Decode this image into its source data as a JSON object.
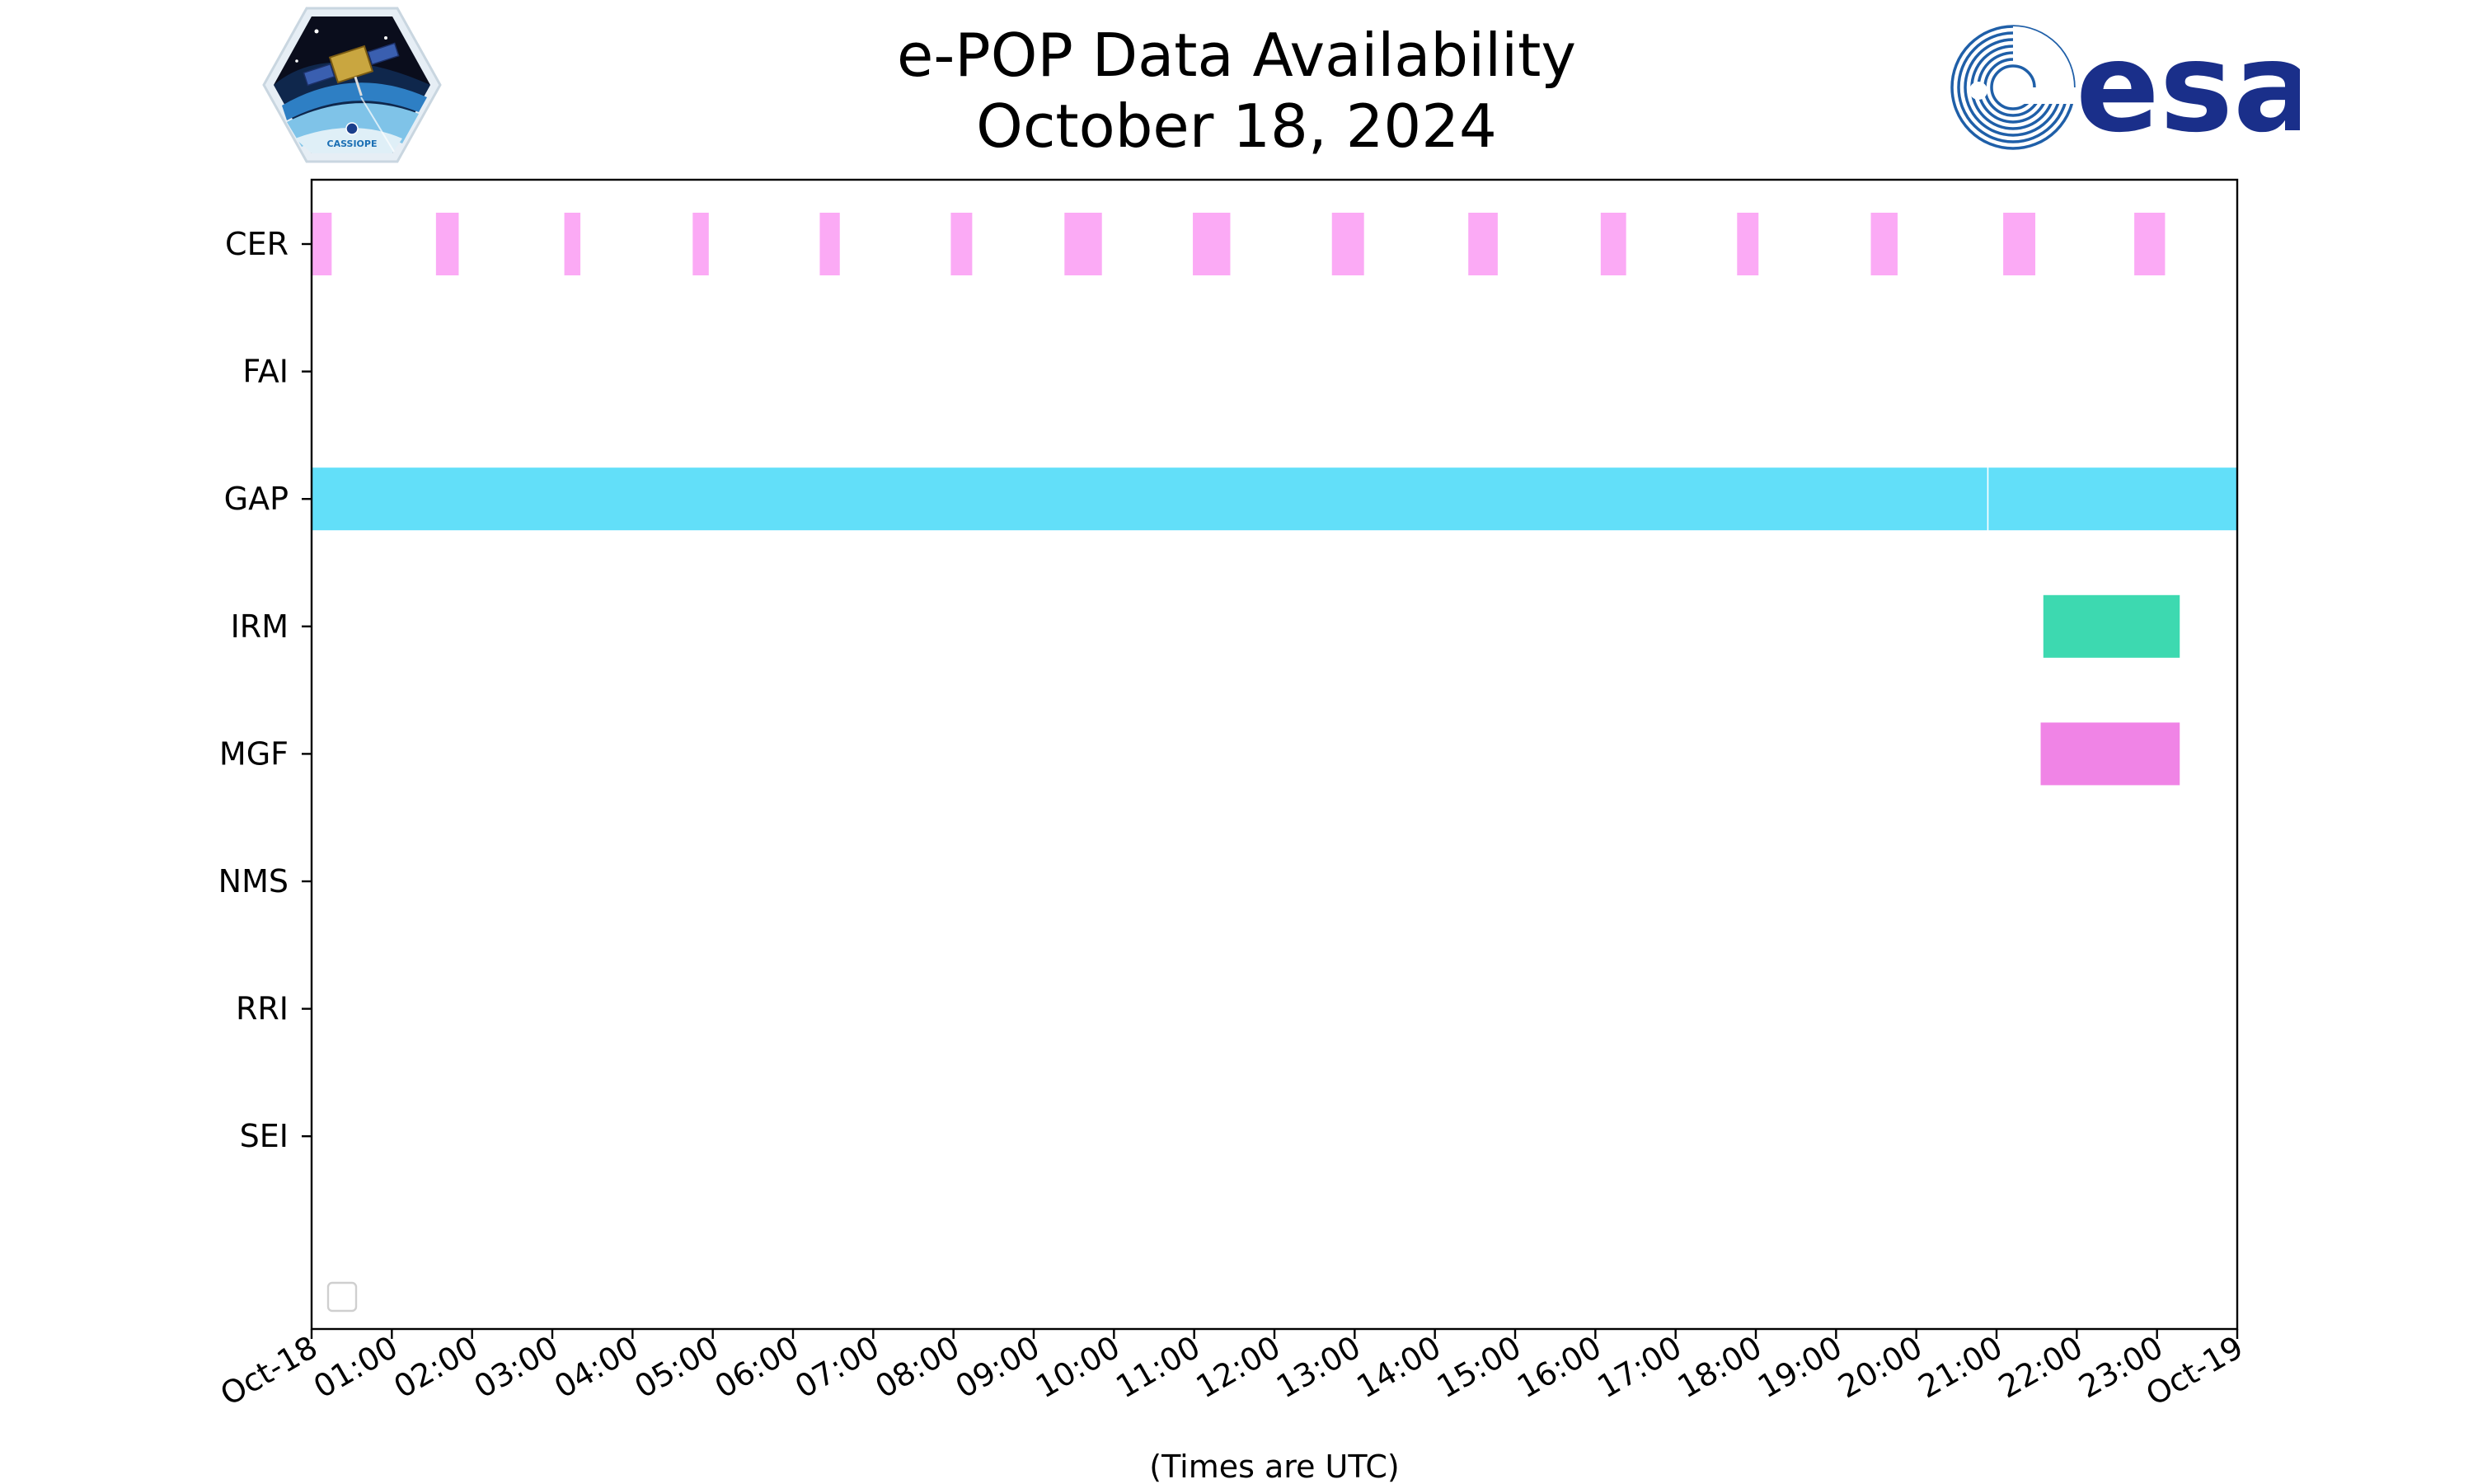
{
  "title": "e-POP Data Availability",
  "subtitle": "October 18, 2024",
  "logos": {
    "left_text": "CASSIOPE",
    "right_text": "esa"
  },
  "chart_data": {
    "type": "timeline",
    "title": "e-POP Data Availability",
    "subtitle": "October 18, 2024",
    "xlabel": "(Times are UTC)",
    "ylabel": "",
    "x_range": [
      "2024-10-18 00:00",
      "2024-10-19 00:00"
    ],
    "x_tick_labels": [
      "Oct-18",
      "01:00",
      "02:00",
      "03:00",
      "04:00",
      "05:00",
      "06:00",
      "07:00",
      "08:00",
      "09:00",
      "10:00",
      "11:00",
      "12:00",
      "13:00",
      "14:00",
      "15:00",
      "16:00",
      "17:00",
      "18:00",
      "19:00",
      "20:00",
      "21:00",
      "22:00",
      "23:00",
      "Oct-19"
    ],
    "categories": [
      "CER",
      "FAI",
      "GAP",
      "IRM",
      "MGF",
      "NMS",
      "RRI",
      "SEI"
    ],
    "grid": false,
    "legend": "bottom-left",
    "series": [
      {
        "instrument": "CER",
        "color": "#fbaaf5",
        "intervals": [
          [
            "00:00",
            "00:15"
          ],
          [
            "01:33",
            "01:50"
          ],
          [
            "03:09",
            "03:21"
          ],
          [
            "04:45",
            "04:57"
          ],
          [
            "06:20",
            "06:35"
          ],
          [
            "07:58",
            "08:14"
          ],
          [
            "09:23",
            "09:51"
          ],
          [
            "10:59",
            "11:27"
          ],
          [
            "12:43",
            "13:07"
          ],
          [
            "14:25",
            "14:47"
          ],
          [
            "16:04",
            "16:23"
          ],
          [
            "17:46",
            "18:02"
          ],
          [
            "19:26",
            "19:46"
          ],
          [
            "21:05",
            "21:29"
          ],
          [
            "22:43",
            "23:06"
          ]
        ]
      },
      {
        "instrument": "FAI",
        "color": "",
        "intervals": []
      },
      {
        "instrument": "GAP",
        "color": "#62dff9",
        "intervals": [
          [
            "00:00",
            "20:53"
          ],
          [
            "20:54",
            "24:00"
          ]
        ]
      },
      {
        "instrument": "IRM",
        "color": "#3dd9b0",
        "intervals": [
          [
            "21:35",
            "23:17"
          ]
        ]
      },
      {
        "instrument": "MGF",
        "color": "#f084e6",
        "intervals": [
          [
            "21:33",
            "23:17"
          ]
        ]
      },
      {
        "instrument": "NMS",
        "color": "",
        "intervals": []
      },
      {
        "instrument": "RRI",
        "color": "",
        "intervals": []
      },
      {
        "instrument": "SEI",
        "color": "",
        "intervals": []
      }
    ]
  }
}
